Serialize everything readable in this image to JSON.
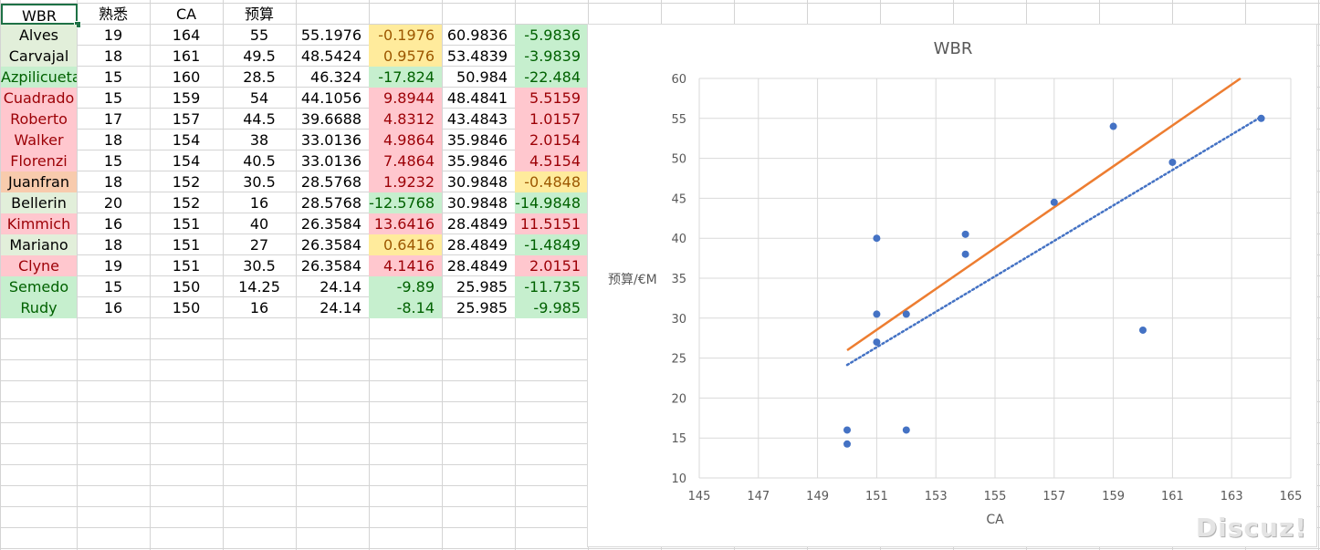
{
  "sheet": {
    "header": [
      "WBR",
      "熟悉",
      "CA",
      "预算"
    ],
    "rows": [
      {
        "name": "Alves",
        "c1": "19",
        "c2": "164",
        "c3": "55",
        "c4": "55.1976",
        "c5": "-0.1976",
        "c6": "60.9836",
        "c7": "-5.9836",
        "name_style": "lg",
        "c5_style": "y",
        "c7_style": "g"
      },
      {
        "name": "Carvajal",
        "c1": "18",
        "c2": "161",
        "c3": "49.5",
        "c4": "48.5424",
        "c5": "0.9576",
        "c6": "53.4839",
        "c7": "-3.9839",
        "name_style": "lg",
        "c5_style": "y",
        "c7_style": "g"
      },
      {
        "name": "Azpilicueta",
        "c1": "15",
        "c2": "160",
        "c3": "28.5",
        "c4": "46.324",
        "c5": "-17.824",
        "c6": "50.984",
        "c7": "-22.484",
        "name_style": "g",
        "c5_style": "g",
        "c7_style": "g"
      },
      {
        "name": "Cuadrado",
        "c1": "15",
        "c2": "159",
        "c3": "54",
        "c4": "44.1056",
        "c5": "9.8944",
        "c6": "48.4841",
        "c7": "5.5159",
        "name_style": "red",
        "c5_style": "red",
        "c7_style": "red"
      },
      {
        "name": "Roberto",
        "c1": "17",
        "c2": "157",
        "c3": "44.5",
        "c4": "39.6688",
        "c5": "4.8312",
        "c6": "43.4843",
        "c7": "1.0157",
        "name_style": "red",
        "c5_style": "red",
        "c7_style": "red"
      },
      {
        "name": "Walker",
        "c1": "18",
        "c2": "154",
        "c3": "38",
        "c4": "33.0136",
        "c5": "4.9864",
        "c6": "35.9846",
        "c7": "2.0154",
        "name_style": "red",
        "c5_style": "red",
        "c7_style": "red"
      },
      {
        "name": "Florenzi",
        "c1": "15",
        "c2": "154",
        "c3": "40.5",
        "c4": "33.0136",
        "c5": "7.4864",
        "c6": "35.9846",
        "c7": "4.5154",
        "name_style": "red",
        "c5_style": "red",
        "c7_style": "red"
      },
      {
        "name": "Juanfran",
        "c1": "18",
        "c2": "152",
        "c3": "30.5",
        "c4": "28.5768",
        "c5": "1.9232",
        "c6": "30.9848",
        "c7": "-0.4848",
        "name_style": "org",
        "c5_style": "red",
        "c7_style": "y"
      },
      {
        "name": "Bellerin",
        "c1": "20",
        "c2": "152",
        "c3": "16",
        "c4": "28.5768",
        "c5": "-12.5768",
        "c6": "30.9848",
        "c7": "-14.9848",
        "name_style": "lg",
        "c5_style": "g",
        "c7_style": "g"
      },
      {
        "name": "Kimmich",
        "c1": "16",
        "c2": "151",
        "c3": "40",
        "c4": "26.3584",
        "c5": "13.6416",
        "c6": "28.4849",
        "c7": "11.5151",
        "name_style": "red",
        "c5_style": "red",
        "c7_style": "red"
      },
      {
        "name": "Mariano",
        "c1": "18",
        "c2": "151",
        "c3": "27",
        "c4": "26.3584",
        "c5": "0.6416",
        "c6": "28.4849",
        "c7": "-1.4849",
        "name_style": "lg",
        "c5_style": "y",
        "c7_style": "g"
      },
      {
        "name": "Clyne",
        "c1": "19",
        "c2": "151",
        "c3": "30.5",
        "c4": "26.3584",
        "c5": "4.1416",
        "c6": "28.4849",
        "c7": "2.0151",
        "name_style": "red",
        "c5_style": "red",
        "c7_style": "red"
      },
      {
        "name": "Semedo",
        "c1": "15",
        "c2": "150",
        "c3": "14.25",
        "c4": "24.14",
        "c5": "-9.89",
        "c6": "25.985",
        "c7": "-11.735",
        "name_style": "g",
        "c5_style": "g",
        "c7_style": "g"
      },
      {
        "name": "Rudy",
        "c1": "16",
        "c2": "150",
        "c3": "16",
        "c4": "24.14",
        "c5": "-8.14",
        "c6": "25.985",
        "c7": "-9.985",
        "name_style": "g",
        "c5_style": "g",
        "c7_style": "g"
      }
    ]
  },
  "chart_data": {
    "type": "scatter",
    "title": "WBR",
    "xlabel": "CA",
    "ylabel": "预算/€M",
    "xlim": [
      145,
      165
    ],
    "ylim": [
      10,
      60
    ],
    "xticks": [
      145,
      147,
      149,
      151,
      153,
      155,
      157,
      159,
      161,
      163,
      165
    ],
    "yticks": [
      10,
      15,
      20,
      25,
      30,
      35,
      40,
      45,
      50,
      55,
      60
    ],
    "grid": true,
    "legend": "none",
    "points": [
      {
        "x": 164,
        "y": 55
      },
      {
        "x": 161,
        "y": 49.5
      },
      {
        "x": 160,
        "y": 28.5
      },
      {
        "x": 159,
        "y": 54
      },
      {
        "x": 157,
        "y": 44.5
      },
      {
        "x": 154,
        "y": 38
      },
      {
        "x": 154,
        "y": 40.5
      },
      {
        "x": 152,
        "y": 30.5
      },
      {
        "x": 152,
        "y": 16
      },
      {
        "x": 151,
        "y": 40
      },
      {
        "x": 151,
        "y": 27
      },
      {
        "x": 151,
        "y": 30.5
      },
      {
        "x": 150,
        "y": 14.25
      },
      {
        "x": 150,
        "y": 16
      }
    ],
    "trendlines": [
      {
        "style": "dotted",
        "color": "#4472c4",
        "from": {
          "x": 150,
          "y": 24.14
        },
        "to": {
          "x": 164,
          "y": 55.1976
        }
      },
      {
        "style": "solid",
        "color": "#ed7d31",
        "from": {
          "x": 150,
          "y": 25.985
        },
        "to": {
          "x": 163.3,
          "y": 60
        }
      }
    ],
    "point_color": "#4472c4"
  },
  "watermark": "Discuz!"
}
